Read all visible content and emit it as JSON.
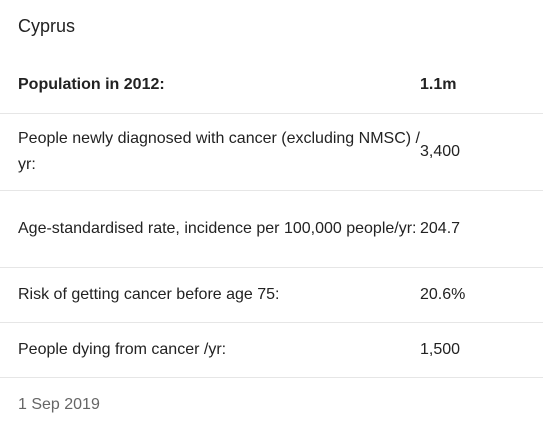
{
  "country": "Cyprus",
  "header": {
    "label": "Population in 2012:",
    "value": "1.1m"
  },
  "rows": [
    {
      "label": "People newly diagnosed with cancer (excluding NMSC) / yr:",
      "value": "3,400"
    },
    {
      "label": "Age-standardised rate, incidence per 100,000 people/yr:",
      "value": "204.7"
    },
    {
      "label": "Risk of getting cancer before age 75:",
      "value": "20.6%"
    },
    {
      "label": "People dying from cancer /yr:",
      "value": "1,500"
    }
  ],
  "footer": {
    "date": "1 Sep 2019"
  }
}
